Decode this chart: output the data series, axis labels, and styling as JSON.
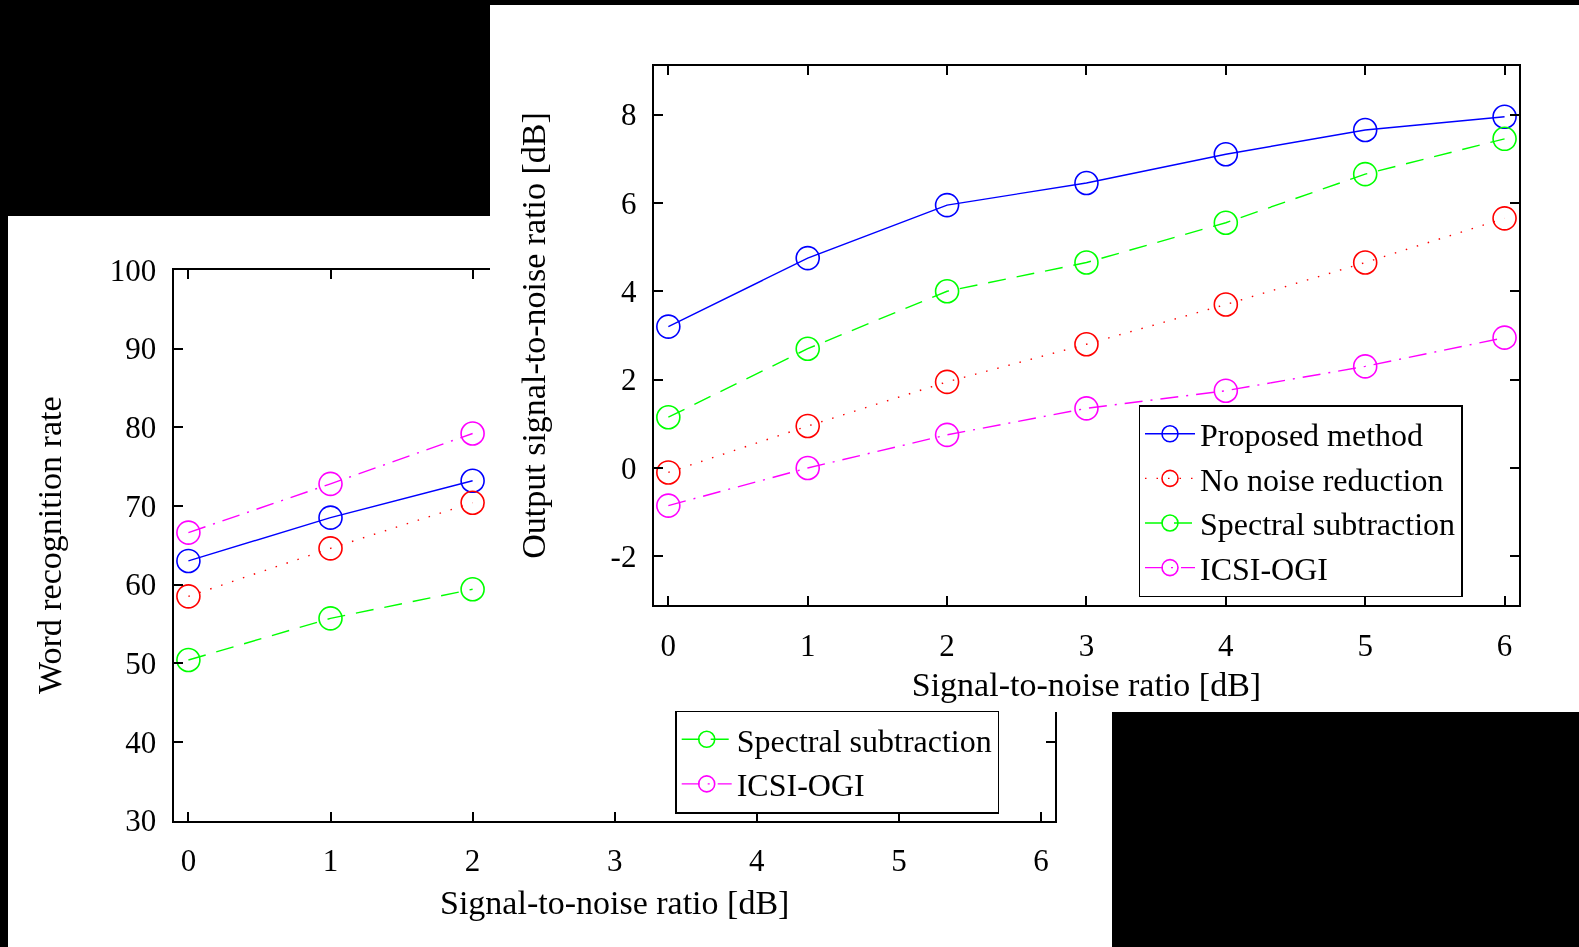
{
  "chart_data": [
    {
      "type": "line",
      "xlabel": "Signal-to-noise ratio [dB]",
      "ylabel": "Word recognition rate",
      "x": [
        0,
        1,
        2
      ],
      "xlim": [
        -0.1,
        6.1
      ],
      "ylim": [
        30,
        100
      ],
      "xticks": [
        0,
        1,
        2,
        3,
        4,
        5,
        6
      ],
      "yticks": [
        30,
        40,
        50,
        60,
        70,
        80,
        90,
        100
      ],
      "legend": "bottom right",
      "marker": "circle",
      "series": [
        {
          "color": "#0000ff",
          "line_style": "solid",
          "values": [
            63.0,
            68.5,
            73.2
          ]
        },
        {
          "color": "#ff0000",
          "line_style": "dotted",
          "values": [
            58.5,
            64.6,
            70.4
          ]
        },
        {
          "name": "Spectral subtraction",
          "color": "#00ff00",
          "line_style": "dashed",
          "values": [
            50.4,
            55.7,
            59.4
          ]
        },
        {
          "name": "ICSI-OGI",
          "color": "#ff00ff",
          "line_style": "dashdot",
          "values": [
            66.6,
            72.8,
            79.2
          ]
        }
      ]
    },
    {
      "type": "line",
      "xlabel": "Signal-to-noise ratio [dB]",
      "ylabel": "Output signal-to-noise ratio [dB]",
      "x": [
        0,
        1,
        2,
        3,
        4,
        5,
        6
      ],
      "xlim": [
        -0.1,
        6.1
      ],
      "ylim": [
        -3.1,
        9.1
      ],
      "xticks": [
        0,
        1,
        2,
        3,
        4,
        5,
        6
      ],
      "yticks": [
        -2,
        0,
        2,
        4,
        6,
        8
      ],
      "legend": "bottom right",
      "marker": "circle",
      "series": [
        {
          "name": "Proposed method",
          "color": "#0000ff",
          "line_style": "solid",
          "values": [
            3.2,
            4.75,
            5.95,
            6.45,
            7.1,
            7.65,
            7.95
          ]
        },
        {
          "name": "No noise reduction",
          "color": "#ff0000",
          "line_style": "dotted",
          "values": [
            -0.1,
            0.95,
            1.95,
            2.8,
            3.7,
            4.65,
            5.65
          ]
        },
        {
          "name": "Spectral subtraction",
          "color": "#00ff00",
          "line_style": "dashed",
          "values": [
            1.15,
            2.7,
            4.0,
            4.65,
            5.55,
            6.65,
            7.45
          ]
        },
        {
          "name": "ICSI-OGI",
          "color": "#ff00ff",
          "line_style": "dashdot",
          "values": [
            -0.85,
            0.0,
            0.75,
            1.35,
            1.75,
            2.3,
            2.95
          ]
        }
      ]
    }
  ]
}
